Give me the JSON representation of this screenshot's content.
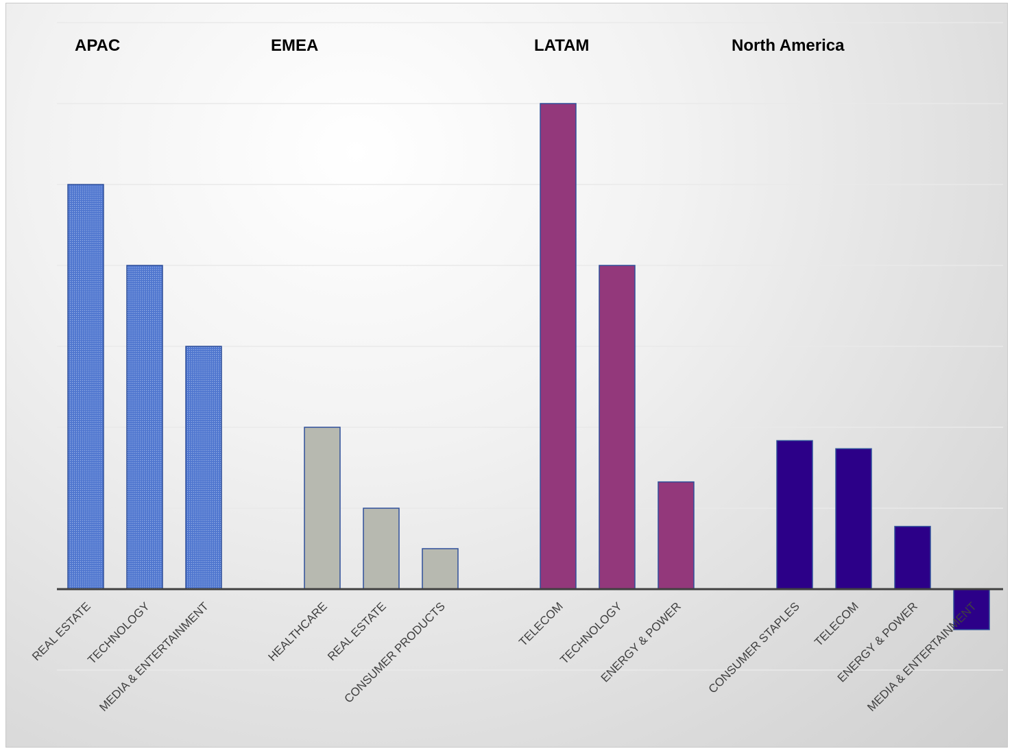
{
  "chart_data": {
    "type": "bar",
    "title": "",
    "xlabel": "",
    "ylabel": "",
    "ylim": [
      -1,
      12.5
    ],
    "grid": true,
    "legend": "none",
    "groups": [
      {
        "name": "APAC",
        "color": "#4f76cf",
        "pattern": "dotted",
        "categories": [
          "REAL ESTATE",
          "TECHNOLOGY",
          "MEDIA & ENTERTAINMENT"
        ],
        "values": [
          10,
          8,
          6
        ]
      },
      {
        "name": "EMEA",
        "color": "#b7b9b0",
        "pattern": "solid",
        "categories": [
          "HEALTHCARE",
          "REAL ESTATE",
          "CONSUMER PRODUCTS"
        ],
        "values": [
          4,
          2,
          1
        ]
      },
      {
        "name": "LATAM",
        "color": "#93387b",
        "pattern": "solid",
        "categories": [
          "TELECOM",
          "TECHNOLOGY",
          "ENERGY & POWER"
        ],
        "values": [
          12,
          8,
          2.65
        ]
      },
      {
        "name": "North America",
        "color": "#2c0088",
        "pattern": "solid",
        "categories": [
          "CONSUMER STAPLES",
          "TELECOM",
          "ENERGY & POWER",
          "MEDIA & ENTERTAINMENT"
        ],
        "values": [
          3.67,
          3.47,
          1.55,
          -1
        ]
      }
    ]
  }
}
